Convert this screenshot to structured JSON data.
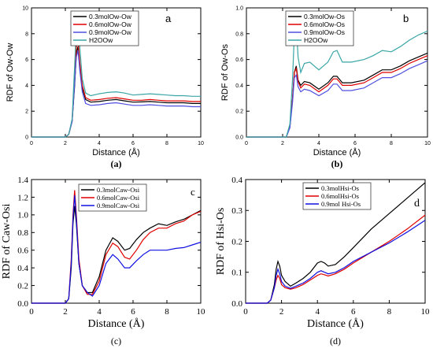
{
  "chart_data": [
    {
      "type": "line",
      "panel_letter": "a",
      "caption": "(a)",
      "xlabel": "Distance (Å)",
      "ylabel": "RDF of Ow-Ow",
      "xlim": [
        0,
        10
      ],
      "ylim": [
        0,
        10
      ],
      "xticks": [
        "0",
        "2",
        "4",
        "6",
        "8",
        "10"
      ],
      "yticks": [
        "0",
        "2",
        "4",
        "6",
        "8",
        "10"
      ],
      "legend": "top-center",
      "series": [
        {
          "name": "0.3molOw-Ow",
          "color": "#000000",
          "x": [
            0,
            2,
            2.2,
            2.4,
            2.55,
            2.65,
            2.75,
            2.85,
            3.0,
            3.2,
            3.5,
            4.0,
            4.5,
            5.0,
            5.5,
            6.0,
            6.5,
            7.0,
            7.5,
            8.0,
            8.5,
            9.0,
            9.5,
            10
          ],
          "y": [
            0,
            0,
            0.2,
            1.2,
            4.0,
            6.5,
            7.0,
            5.5,
            3.8,
            2.9,
            2.7,
            2.75,
            2.85,
            2.9,
            2.8,
            2.7,
            2.72,
            2.75,
            2.7,
            2.65,
            2.65,
            2.65,
            2.6,
            2.6
          ]
        },
        {
          "name": "0.6molOw-Ow",
          "color": "#e00000",
          "x": [
            0,
            2,
            2.2,
            2.4,
            2.55,
            2.65,
            2.75,
            2.85,
            3.0,
            3.2,
            3.5,
            4.0,
            4.5,
            5.0,
            5.5,
            6.0,
            6.5,
            7.0,
            7.5,
            8.0,
            8.5,
            9.0,
            9.5,
            10
          ],
          "y": [
            0,
            0,
            0.2,
            1.3,
            4.5,
            7.0,
            7.5,
            5.8,
            4.0,
            3.05,
            2.85,
            2.9,
            3.0,
            3.05,
            2.95,
            2.85,
            2.85,
            2.9,
            2.85,
            2.8,
            2.8,
            2.8,
            2.75,
            2.75
          ]
        },
        {
          "name": "0.9molOw-Ow",
          "color": "#5050e0",
          "x": [
            0,
            2,
            2.2,
            2.4,
            2.55,
            2.65,
            2.75,
            2.85,
            3.0,
            3.2,
            3.5,
            4.0,
            4.5,
            5.0,
            5.5,
            6.0,
            6.5,
            7.0,
            7.5,
            8.0,
            8.5,
            9.0,
            9.5,
            10
          ],
          "y": [
            0,
            0,
            0.2,
            1.2,
            4.2,
            6.2,
            6.7,
            5.2,
            3.5,
            2.6,
            2.45,
            2.5,
            2.6,
            2.65,
            2.55,
            2.45,
            2.45,
            2.5,
            2.45,
            2.4,
            2.4,
            2.4,
            2.35,
            2.35
          ]
        },
        {
          "name": "H2OOw",
          "color": "#3aa6a6",
          "x": [
            0,
            2,
            2.2,
            2.4,
            2.55,
            2.65,
            2.75,
            2.85,
            3.0,
            3.2,
            3.5,
            4.0,
            4.5,
            5.0,
            5.5,
            6.0,
            6.5,
            7.0,
            7.5,
            8.0,
            8.5,
            9.0,
            9.5,
            10
          ],
          "y": [
            0,
            0,
            0.2,
            1.4,
            5.5,
            8.5,
            9.1,
            7.0,
            4.5,
            3.4,
            3.2,
            3.35,
            3.45,
            3.5,
            3.4,
            3.25,
            3.3,
            3.35,
            3.3,
            3.25,
            3.2,
            3.2,
            3.15,
            3.15
          ]
        }
      ]
    },
    {
      "type": "line",
      "panel_letter": "b",
      "caption": "(b)",
      "xlabel": "Distance (Å)",
      "ylabel": "RDF of Ow-Os",
      "xlim": [
        0,
        10
      ],
      "ylim": [
        0,
        1.0
      ],
      "xticks": [
        "0",
        "2",
        "4",
        "6",
        "8",
        "10"
      ],
      "yticks": [
        "0.0",
        "0.2",
        "0.4",
        "0.6",
        "0.8",
        "1.0"
      ],
      "legend": "top-center",
      "series": [
        {
          "name": "0.3molOw-Os",
          "color": "#000000",
          "x": [
            0,
            2.2,
            2.4,
            2.55,
            2.65,
            2.75,
            2.85,
            3.0,
            3.2,
            3.5,
            4.0,
            4.5,
            4.8,
            5.0,
            5.3,
            5.8,
            6.5,
            7.0,
            7.5,
            8.0,
            8.5,
            9.0,
            9.5,
            10
          ],
          "y": [
            0,
            0,
            0.08,
            0.3,
            0.5,
            0.55,
            0.44,
            0.4,
            0.43,
            0.42,
            0.37,
            0.42,
            0.47,
            0.47,
            0.42,
            0.42,
            0.44,
            0.48,
            0.52,
            0.52,
            0.55,
            0.59,
            0.62,
            0.65
          ]
        },
        {
          "name": "0.6molOw-Os",
          "color": "#e00000",
          "x": [
            0,
            2.2,
            2.4,
            2.55,
            2.65,
            2.75,
            2.85,
            3.0,
            3.2,
            3.5,
            4.0,
            4.5,
            4.8,
            5.0,
            5.3,
            5.8,
            6.5,
            7.0,
            7.5,
            8.0,
            8.5,
            9.0,
            9.5,
            10
          ],
          "y": [
            0,
            0,
            0.08,
            0.3,
            0.5,
            0.53,
            0.43,
            0.38,
            0.41,
            0.4,
            0.35,
            0.4,
            0.45,
            0.45,
            0.4,
            0.4,
            0.42,
            0.46,
            0.5,
            0.5,
            0.53,
            0.57,
            0.6,
            0.63
          ]
        },
        {
          "name": "0.9molOw-Os",
          "color": "#5050e0",
          "x": [
            0,
            2.2,
            2.4,
            2.55,
            2.65,
            2.75,
            2.85,
            3.0,
            3.2,
            3.5,
            4.0,
            4.5,
            4.8,
            5.0,
            5.3,
            5.8,
            6.5,
            7.0,
            7.5,
            8.0,
            8.5,
            9.0,
            9.5,
            10
          ],
          "y": [
            0,
            0,
            0.07,
            0.27,
            0.46,
            0.48,
            0.39,
            0.35,
            0.37,
            0.36,
            0.32,
            0.36,
            0.41,
            0.41,
            0.36,
            0.36,
            0.38,
            0.42,
            0.46,
            0.46,
            0.49,
            0.53,
            0.56,
            0.59
          ]
        },
        {
          "name": "H2OOw",
          "color": "#3aa6a6",
          "x": [
            0,
            2.2,
            2.4,
            2.55,
            2.65,
            2.75,
            2.85,
            3.0,
            3.2,
            3.5,
            4.0,
            4.5,
            4.8,
            5.0,
            5.3,
            5.8,
            6.5,
            7.0,
            7.5,
            8.0,
            8.5,
            9.0,
            9.5,
            10
          ],
          "y": [
            0,
            0,
            0.1,
            0.45,
            0.8,
            0.88,
            0.62,
            0.5,
            0.57,
            0.58,
            0.52,
            0.58,
            0.66,
            0.67,
            0.58,
            0.58,
            0.6,
            0.63,
            0.67,
            0.66,
            0.7,
            0.75,
            0.79,
            0.82
          ]
        }
      ]
    },
    {
      "type": "line",
      "panel_letter": "c",
      "caption": "(c)",
      "xlabel": "Distance (Å)",
      "ylabel": "RDF of Caw-Osi",
      "xlim": [
        0,
        10
      ],
      "ylim": [
        0,
        1.4
      ],
      "xticks": [
        "0",
        "2",
        "4",
        "6",
        "8",
        "10"
      ],
      "yticks": [
        "0.0",
        "0.2",
        "0.4",
        "0.6",
        "0.8",
        "1.0",
        "1.2",
        "1.4"
      ],
      "legend": "top-center",
      "series": [
        {
          "name": "0.3molCaw-Osi",
          "color": "#000000",
          "x": [
            0,
            2.0,
            2.2,
            2.35,
            2.45,
            2.55,
            2.65,
            2.8,
            3.0,
            3.3,
            3.6,
            4.0,
            4.4,
            4.8,
            5.1,
            5.5,
            5.8,
            6.2,
            6.6,
            7.0,
            7.5,
            8.0,
            8.5,
            9.0,
            9.5,
            10
          ],
          "y": [
            0,
            0,
            0.05,
            0.4,
            0.9,
            1.1,
            0.9,
            0.45,
            0.2,
            0.12,
            0.12,
            0.3,
            0.6,
            0.74,
            0.7,
            0.6,
            0.62,
            0.72,
            0.8,
            0.85,
            0.9,
            0.88,
            0.92,
            0.95,
            1.0,
            1.05
          ]
        },
        {
          "name": "0.6molCaw-Osi",
          "color": "#e00000",
          "x": [
            0,
            2.0,
            2.2,
            2.35,
            2.45,
            2.55,
            2.65,
            2.8,
            3.0,
            3.3,
            3.6,
            4.0,
            4.4,
            4.8,
            5.1,
            5.5,
            5.8,
            6.2,
            6.6,
            7.0,
            7.5,
            8.0,
            8.5,
            9.0,
            9.5,
            10
          ],
          "y": [
            0,
            0,
            0.05,
            0.5,
            1.0,
            1.28,
            1.0,
            0.5,
            0.2,
            0.1,
            0.1,
            0.25,
            0.55,
            0.68,
            0.64,
            0.52,
            0.5,
            0.6,
            0.72,
            0.8,
            0.85,
            0.85,
            0.9,
            0.93,
            1.0,
            1.04
          ]
        },
        {
          "name": "0.9molCaw-Osi",
          "color": "#1010e0",
          "x": [
            0,
            2.0,
            2.2,
            2.35,
            2.45,
            2.55,
            2.65,
            2.8,
            3.0,
            3.3,
            3.6,
            4.0,
            4.4,
            4.8,
            5.1,
            5.5,
            5.8,
            6.2,
            6.6,
            7.0,
            7.5,
            8.0,
            8.5,
            9.0,
            9.5,
            10
          ],
          "y": [
            0,
            0,
            0.05,
            0.45,
            0.95,
            1.22,
            0.95,
            0.45,
            0.2,
            0.12,
            0.08,
            0.2,
            0.45,
            0.55,
            0.5,
            0.4,
            0.4,
            0.48,
            0.55,
            0.6,
            0.6,
            0.6,
            0.62,
            0.63,
            0.66,
            0.69
          ]
        }
      ]
    },
    {
      "type": "line",
      "panel_letter": "d",
      "caption": "(d)",
      "xlabel": "Distance (Å)",
      "ylabel": "RDF of Hsi-Os",
      "xlim": [
        0,
        10
      ],
      "ylim": [
        0,
        0.4
      ],
      "xticks": [
        "0",
        "2",
        "4",
        "6",
        "8",
        "10"
      ],
      "yticks": [
        "0.0",
        "0.1",
        "0.2",
        "0.3",
        "0.4"
      ],
      "legend": "top-center",
      "series": [
        {
          "name": "0.3molHsi-Os",
          "color": "#000000",
          "x": [
            0,
            1.2,
            1.4,
            1.6,
            1.7,
            1.8,
            1.9,
            2.0,
            2.2,
            2.5,
            2.8,
            3.2,
            3.6,
            4.0,
            4.2,
            4.4,
            4.6,
            5.0,
            5.5,
            6.0,
            7.0,
            8.0,
            9.0,
            10
          ],
          "y": [
            0,
            0,
            0.01,
            0.06,
            0.11,
            0.135,
            0.12,
            0.09,
            0.07,
            0.055,
            0.065,
            0.08,
            0.1,
            0.13,
            0.135,
            0.13,
            0.12,
            0.125,
            0.15,
            0.18,
            0.24,
            0.29,
            0.34,
            0.39
          ]
        },
        {
          "name": "0.6molHsi-Os",
          "color": "#e00000",
          "x": [
            0,
            1.2,
            1.4,
            1.6,
            1.7,
            1.8,
            1.9,
            2.0,
            2.2,
            2.5,
            2.8,
            3.2,
            3.6,
            4.0,
            4.2,
            4.4,
            4.6,
            5.0,
            5.5,
            6.0,
            7.0,
            8.0,
            9.0,
            10
          ],
          "y": [
            0,
            0,
            0.01,
            0.05,
            0.075,
            0.09,
            0.08,
            0.06,
            0.05,
            0.045,
            0.05,
            0.06,
            0.075,
            0.09,
            0.095,
            0.092,
            0.088,
            0.095,
            0.11,
            0.13,
            0.165,
            0.2,
            0.24,
            0.285
          ]
        },
        {
          "name": "0.9mol Hsi-Os",
          "color": "#1010e0",
          "x": [
            0,
            1.2,
            1.4,
            1.6,
            1.7,
            1.8,
            1.9,
            2.0,
            2.2,
            2.5,
            2.8,
            3.2,
            3.6,
            4.0,
            4.2,
            4.4,
            4.6,
            5.0,
            5.5,
            6.0,
            7.0,
            8.0,
            9.0,
            10
          ],
          "y": [
            0,
            0,
            0.01,
            0.05,
            0.09,
            0.11,
            0.095,
            0.07,
            0.055,
            0.048,
            0.055,
            0.065,
            0.08,
            0.1,
            0.105,
            0.1,
            0.095,
            0.1,
            0.115,
            0.135,
            0.165,
            0.195,
            0.23,
            0.268
          ]
        }
      ]
    }
  ]
}
